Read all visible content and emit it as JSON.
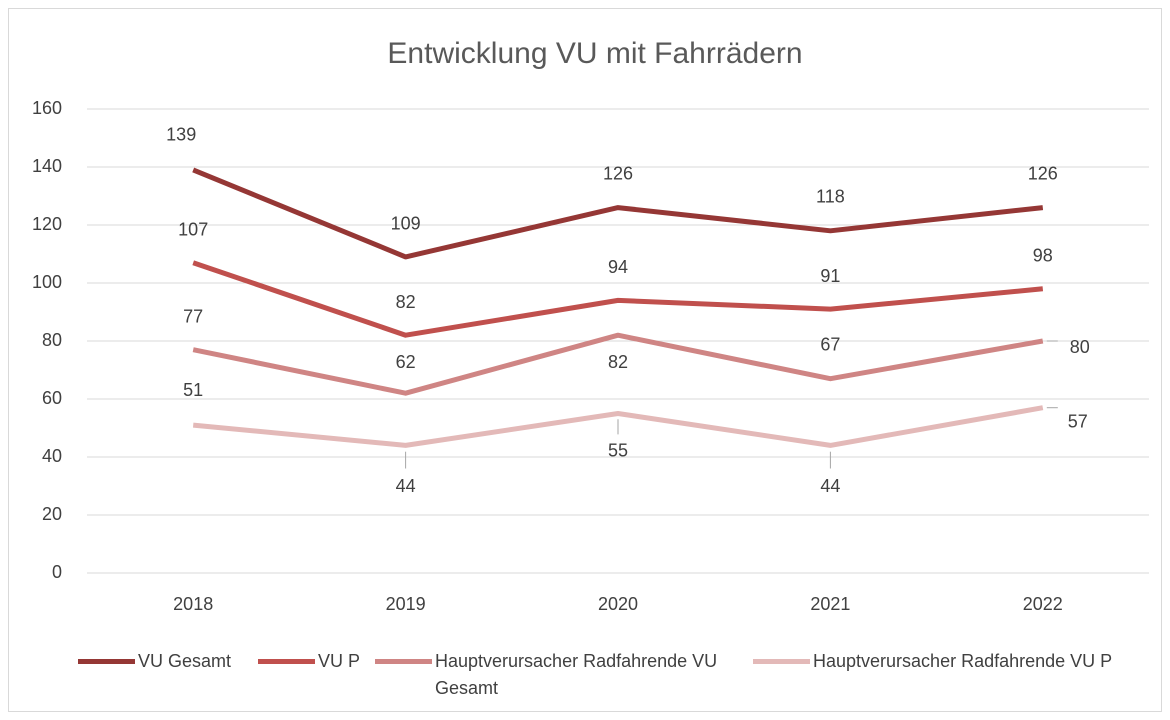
{
  "chart_data": {
    "type": "line",
    "title": "Entwicklung VU mit Fahrrädern",
    "categories": [
      "2018",
      "2019",
      "2020",
      "2021",
      "2022"
    ],
    "series": [
      {
        "name": "VU Gesamt",
        "color": "#953735",
        "values": [
          139,
          109,
          126,
          118,
          126
        ]
      },
      {
        "name": "VU P",
        "color": "#c0504d",
        "values": [
          107,
          82,
          94,
          91,
          98
        ]
      },
      {
        "name": "Hauptverursacher Radfahrende VU Gesamt",
        "color": "#cf8584",
        "values": [
          77,
          62,
          82,
          67,
          80
        ]
      },
      {
        "name": "Hauptverursacher Radfahrende VU P",
        "color": "#e3b9b8",
        "values": [
          51,
          44,
          55,
          44,
          57
        ]
      }
    ],
    "ylim": [
      0,
      160
    ],
    "yticks": [
      0,
      20,
      40,
      60,
      80,
      100,
      120,
      140,
      160
    ],
    "grid": true,
    "legend": "bottom"
  }
}
